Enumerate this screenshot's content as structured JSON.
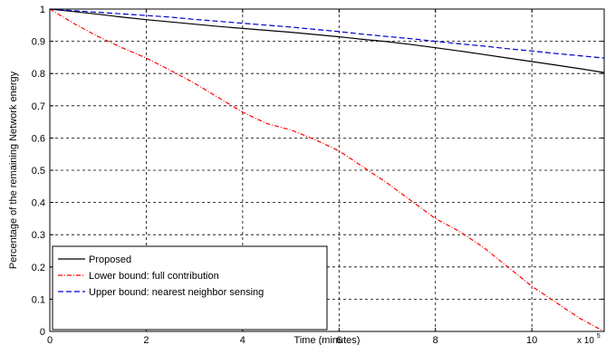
{
  "chart_data": {
    "type": "line",
    "title": "",
    "xlabel": "Time (minutes)",
    "ylabel": "Percentage of the remaining Network energy",
    "x_multiplier_label": "x 10",
    "x_multiplier_exponent": "5",
    "xlim": [
      0,
      11.5
    ],
    "ylim": [
      0,
      1
    ],
    "x_ticks": [
      0,
      2,
      4,
      6,
      8,
      10
    ],
    "x_tick_labels": [
      "0",
      "2",
      "4",
      "6",
      "8",
      "10"
    ],
    "y_ticks": [
      0,
      0.1,
      0.2,
      0.3,
      0.4,
      0.5,
      0.6,
      0.7,
      0.8,
      0.9,
      1
    ],
    "y_tick_labels": [
      "0",
      "0.1",
      "0.2",
      "0.3",
      "0.4",
      "0.5",
      "0.6",
      "0.7",
      "0.8",
      "0.9",
      "1"
    ],
    "grid": true,
    "legend_position": "bottom-left",
    "series": [
      {
        "name": "Proposed",
        "color": "#000000",
        "dash": "solid",
        "x": [
          0,
          0.5,
          1,
          1.5,
          2,
          2.5,
          3,
          3.5,
          4,
          4.5,
          5,
          5.5,
          6,
          6.5,
          7,
          7.5,
          8,
          8.5,
          9,
          9.5,
          10,
          10.5,
          11,
          11.5
        ],
        "y": [
          1.0,
          0.992,
          0.984,
          0.975,
          0.967,
          0.96,
          0.953,
          0.946,
          0.94,
          0.934,
          0.928,
          0.921,
          0.914,
          0.906,
          0.899,
          0.89,
          0.88,
          0.87,
          0.859,
          0.848,
          0.837,
          0.826,
          0.815,
          0.803
        ]
      },
      {
        "name": "Lower bound: full contribution",
        "color": "#ff0000",
        "dash": "dash-dot",
        "x": [
          0,
          0.5,
          1,
          1.5,
          2,
          2.5,
          3,
          3.5,
          4,
          4.5,
          5,
          5.5,
          6,
          6.5,
          7,
          7.5,
          8,
          8.5,
          9,
          9.5,
          10,
          10.5,
          11,
          11.5
        ],
        "y": [
          1.0,
          0.955,
          0.915,
          0.88,
          0.848,
          0.81,
          0.77,
          0.725,
          0.68,
          0.645,
          0.625,
          0.595,
          0.56,
          0.51,
          0.46,
          0.405,
          0.35,
          0.31,
          0.26,
          0.2,
          0.14,
          0.09,
          0.04,
          0.0
        ]
      },
      {
        "name": "Upper bound: nearest neighbor sensing",
        "color": "#0000cc",
        "dash": "dashed",
        "x": [
          0,
          0.5,
          1,
          1.5,
          2,
          2.5,
          3,
          3.5,
          4,
          4.5,
          5,
          5.5,
          6,
          6.5,
          7,
          7.5,
          8,
          8.5,
          9,
          9.5,
          10,
          10.5,
          11,
          11.5
        ],
        "y": [
          1.0,
          0.995,
          0.99,
          0.985,
          0.98,
          0.975,
          0.968,
          0.962,
          0.956,
          0.95,
          0.944,
          0.937,
          0.93,
          0.922,
          0.915,
          0.908,
          0.9,
          0.892,
          0.885,
          0.877,
          0.87,
          0.862,
          0.855,
          0.848
        ]
      }
    ]
  }
}
